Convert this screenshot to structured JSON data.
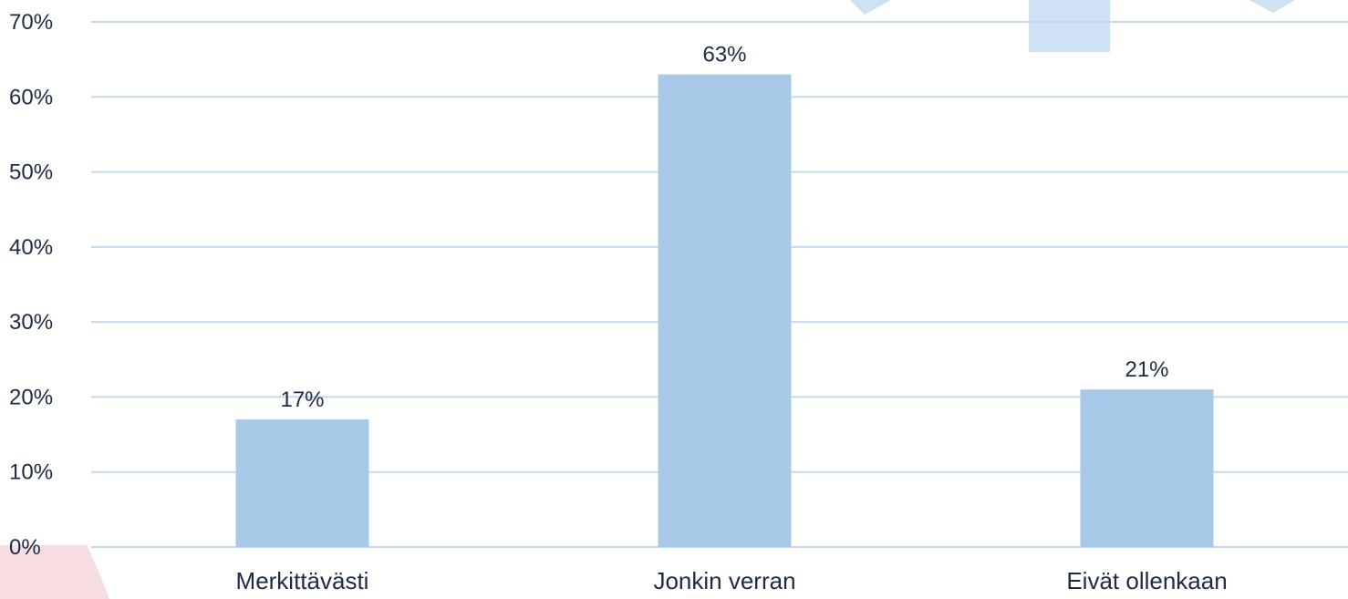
{
  "chart_data": {
    "type": "bar",
    "categories": [
      "Merkittävästi",
      "Jonkin verran",
      "Eivät ollenkaan"
    ],
    "values": [
      17,
      63,
      21
    ],
    "data_labels": [
      "17%",
      "63%",
      "21%"
    ],
    "ylim": [
      0,
      70
    ],
    "yticks": [
      0,
      10,
      20,
      30,
      40,
      50,
      60,
      70
    ],
    "ytick_labels": [
      "0%",
      "10%",
      "20%",
      "30%",
      "40%",
      "50%",
      "60%",
      "70%"
    ],
    "grid": true,
    "legend": "none",
    "colors": {
      "bar": "#a7c8e6",
      "grid": "#c5d9ee",
      "text": "#1f2a44",
      "deco_blue": "#cfe2f3",
      "deco_pink": "#f6dde2"
    }
  }
}
